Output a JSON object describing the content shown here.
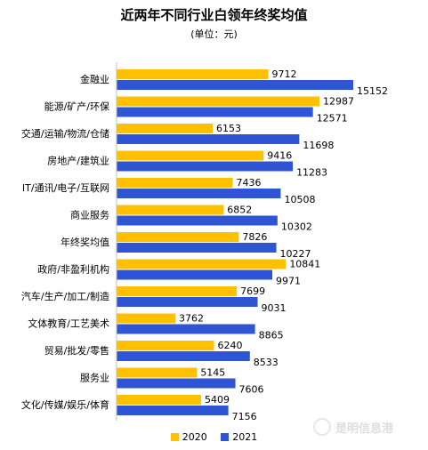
{
  "chart_data": {
    "type": "bar",
    "orientation": "horizontal",
    "title": "近两年不同行业白领年终奖均值",
    "subtitle": "(单位：元)",
    "categories": [
      "金融业",
      "能源/矿产/环保",
      "交通/运输/物流/仓储",
      "房地产/建筑业",
      "IT/通讯/电子/互联网",
      "商业服务",
      "年终奖均值",
      "政府/非盈利机构",
      "汽车/生产/加工/制造",
      "文体教育/工艺美术",
      "贸易/批发/零售",
      "服务业",
      "文化/传媒/娱乐/体育"
    ],
    "series": [
      {
        "name": "2020",
        "color": "#FFC000",
        "values": [
          9712,
          12987,
          6153,
          9416,
          7436,
          6852,
          7826,
          10841,
          7699,
          3762,
          6240,
          5145,
          5409
        ]
      },
      {
        "name": "2021",
        "color": "#2F55D4",
        "values": [
          15152,
          12571,
          11698,
          11283,
          10508,
          10302,
          10227,
          9971,
          9031,
          8865,
          8533,
          7606,
          7156
        ]
      }
    ],
    "xlim": [
      0,
      15152
    ],
    "grid": false,
    "legend_position": "bottom"
  },
  "watermark": "是明信息港"
}
